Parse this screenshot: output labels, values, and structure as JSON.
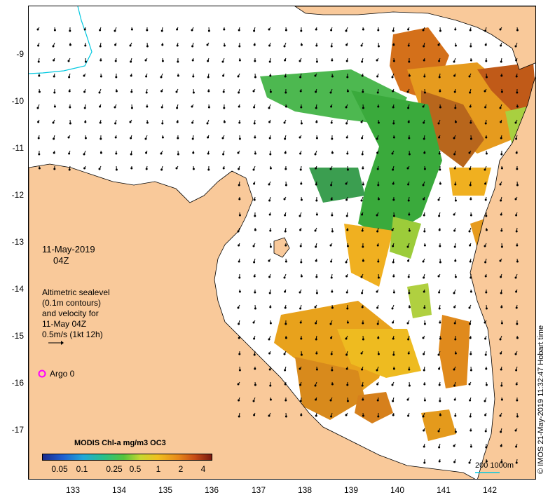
{
  "map": {
    "date": "11-May-2019",
    "time": "04Z",
    "legend_lines": [
      "Altimetric sealevel",
      "(0.1m contours)",
      "and velocity for",
      "11-May 04Z",
      "0.5m/s (1kt 12h)"
    ],
    "argo_label": "Argo 0",
    "credit": "© IMOS 21-May-2019 11:32:47 Hobart time",
    "scale_label": "200  1000m",
    "lat_labels": [
      "-9",
      "-10",
      "-11",
      "-12",
      "-13",
      "-14",
      "-15",
      "-16",
      "-17"
    ],
    "lon_labels": [
      "133",
      "134",
      "135",
      "136",
      "137",
      "138",
      "139",
      "140",
      "141",
      "142"
    ],
    "colorbar": {
      "title": "MODIS Chl-a mg/m3 OC3",
      "ticks": [
        "0.05",
        "0.1",
        "0.25",
        "0.5",
        "1",
        "2",
        "4"
      ]
    },
    "colors": {
      "land": "#f9c99a",
      "argo": "#ff00ff",
      "contour": "#00c8e0"
    }
  }
}
